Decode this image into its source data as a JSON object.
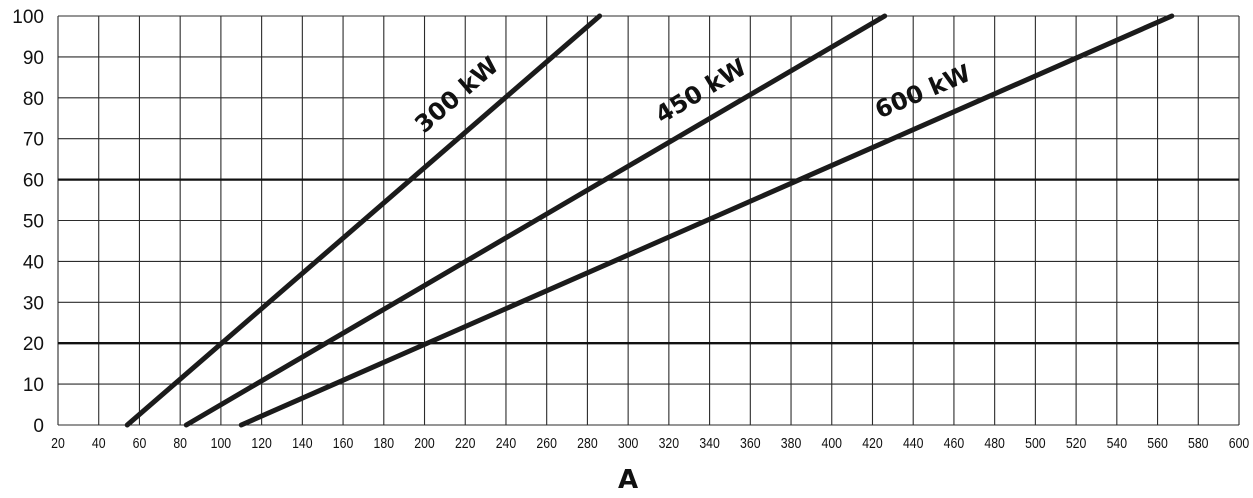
{
  "chart_data": {
    "type": "line",
    "xlabel": "A",
    "ylabel": "",
    "xlim": [
      20,
      600
    ],
    "ylim": [
      0,
      100
    ],
    "x_ticks": [
      20,
      40,
      60,
      80,
      100,
      120,
      140,
      160,
      180,
      200,
      220,
      240,
      260,
      280,
      300,
      320,
      340,
      360,
      380,
      400,
      420,
      440,
      460,
      480,
      500,
      520,
      540,
      560,
      580,
      600
    ],
    "y_ticks": [
      0,
      10,
      20,
      30,
      40,
      50,
      60,
      70,
      80,
      90,
      100
    ],
    "grid": true,
    "emphasized_gridlines_y": [
      20,
      60
    ],
    "line_color": "#1b1b1b",
    "series": [
      {
        "name": "300 kW",
        "x": [
          54,
          286
        ],
        "y": [
          0,
          100
        ]
      },
      {
        "name": "450 kW",
        "x": [
          83,
          426
        ],
        "y": [
          0,
          100
        ]
      },
      {
        "name": "600 kW",
        "x": [
          110,
          567
        ],
        "y": [
          0,
          100
        ]
      }
    ]
  }
}
